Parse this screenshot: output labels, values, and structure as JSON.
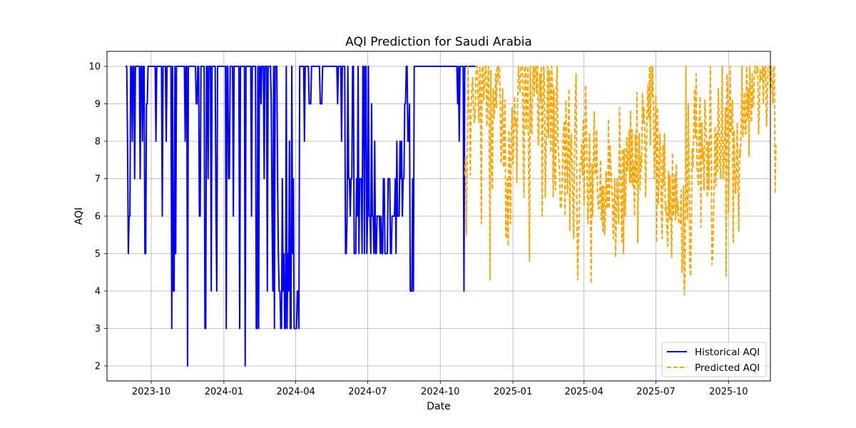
{
  "chart_data": {
    "type": "line",
    "title": "AQI Prediction for Saudi Arabia",
    "xlabel": "Date",
    "ylabel": "AQI",
    "x_is_date": true,
    "xlim": [
      "2023-08-06",
      "2025-11-23"
    ],
    "ylim": [
      1.6,
      10.4
    ],
    "yticks": [
      2,
      3,
      4,
      5,
      6,
      7,
      8,
      9,
      10
    ],
    "xticks": [
      "2023-10-01",
      "2024-01-01",
      "2024-04-01",
      "2024-07-01",
      "2024-10-01",
      "2025-01-01",
      "2025-04-01",
      "2025-07-01",
      "2025-10-01"
    ],
    "xtick_labels": [
      "2023-10",
      "2024-01",
      "2024-04",
      "2024-07",
      "2024-10",
      "2025-01",
      "2025-04",
      "2025-07",
      "2025-10"
    ],
    "grid": true,
    "legend_position": "lower-right",
    "series": [
      {
        "name": "Historical AQI",
        "color": "#0000ff",
        "style": "solid",
        "start_date": "2023-08-30",
        "values": [
          10,
          10,
          8,
          5,
          6,
          6,
          10,
          10,
          8,
          10,
          10,
          7,
          10,
          10,
          10,
          10,
          10,
          10,
          7,
          10,
          10,
          8,
          10,
          10,
          5,
          5,
          9,
          9,
          10,
          10,
          10,
          10,
          10,
          10,
          10,
          10,
          10,
          10,
          8,
          10,
          10,
          10,
          10,
          10,
          10,
          10,
          6,
          10,
          10,
          10,
          10,
          8,
          10,
          10,
          10,
          10,
          10,
          10,
          3,
          10,
          4,
          4,
          10,
          5,
          10,
          10,
          10,
          10,
          10,
          10,
          10,
          10,
          10,
          10,
          10,
          8,
          10,
          10,
          2,
          10,
          10,
          10,
          10,
          10,
          10,
          10,
          10,
          10,
          10,
          9,
          9,
          10,
          10,
          6,
          6,
          10,
          10,
          10,
          10,
          10,
          3,
          3,
          10,
          10,
          7,
          10,
          10,
          10,
          4,
          10,
          10,
          10,
          10,
          10,
          6,
          4,
          10,
          10,
          10,
          10,
          10,
          10,
          10,
          10,
          10,
          10,
          10,
          3,
          10,
          10,
          7,
          7,
          10,
          10,
          10,
          10,
          6,
          10,
          10,
          10,
          10,
          10,
          10,
          10,
          3,
          10,
          10,
          10,
          10,
          10,
          10,
          2,
          10,
          10,
          10,
          10,
          10,
          10,
          10,
          6,
          10,
          10,
          10,
          10,
          10,
          3,
          3,
          10,
          3,
          10,
          10,
          9,
          10,
          10,
          10,
          7,
          10,
          10,
          10,
          4,
          10,
          10,
          10,
          10,
          9,
          6,
          4,
          10,
          3,
          10,
          10,
          10,
          7,
          5,
          4,
          4,
          3,
          3,
          7,
          4,
          5,
          3,
          3,
          10,
          3,
          5,
          4,
          8,
          3,
          3,
          10,
          5,
          7,
          3,
          3,
          3,
          3,
          4,
          4,
          3,
          10,
          10,
          10,
          10,
          10,
          10,
          8,
          10,
          10,
          10,
          10,
          10,
          9,
          9,
          9,
          10,
          10,
          10,
          10,
          10,
          10,
          10,
          10,
          10,
          10,
          10,
          9,
          9,
          9,
          10,
          10,
          10,
          10,
          10,
          10,
          10,
          10,
          10,
          10,
          10,
          10,
          10,
          10,
          10,
          10,
          10,
          10,
          10,
          9,
          10,
          10,
          10,
          10,
          8,
          10,
          10,
          10,
          10,
          5,
          5,
          6,
          10,
          7,
          7,
          6,
          7,
          7,
          10,
          10,
          5,
          5,
          5,
          7,
          6,
          10,
          5,
          7,
          7,
          7,
          5,
          10,
          10,
          5,
          10,
          10,
          5,
          6,
          10,
          6,
          6,
          5,
          9,
          6,
          6,
          5,
          8,
          5,
          5,
          6,
          6,
          6,
          6,
          5,
          6,
          5,
          5,
          7,
          7,
          5,
          5,
          5,
          5,
          7,
          7,
          7,
          5,
          5,
          6,
          6,
          6,
          6,
          7,
          5,
          8,
          6,
          6,
          6,
          8,
          7,
          8,
          6,
          7,
          7,
          9,
          9,
          10,
          10,
          8,
          8,
          9,
          4,
          4,
          4,
          7,
          4,
          10,
          10,
          10,
          10,
          10,
          10,
          10,
          10,
          10,
          10,
          10,
          10,
          10,
          10,
          10,
          10,
          10,
          10,
          10,
          10,
          10,
          10,
          10,
          10,
          10,
          10,
          10,
          10,
          10,
          10,
          10,
          10,
          10,
          10,
          10,
          10,
          10,
          10,
          10,
          10,
          10,
          10,
          10,
          10,
          10,
          10,
          10,
          10,
          10,
          10,
          10,
          10,
          10,
          10,
          10,
          9,
          10,
          8,
          10,
          10,
          10,
          10,
          10,
          4,
          10,
          10,
          10,
          10,
          10,
          10,
          10,
          10,
          10,
          10,
          10,
          10,
          10,
          10
        ]
      },
      {
        "name": "Predicted AQI",
        "color": "#ffa500",
        "style": "dashed",
        "start_date": "2024-11-01",
        "values": [
          7.1,
          7.6,
          5.5,
          7.3,
          10,
          9.1,
          8.6,
          7.1,
          8.9,
          9.4,
          9.7,
          9.0,
          8.5,
          8.6,
          9.7,
          10,
          10,
          9.0,
          8.5,
          10,
          9.2,
          5.8,
          9.9,
          10,
          9.1,
          9.6,
          10,
          10,
          8.4,
          9.3,
          10,
          8.3,
          4.3,
          9.9,
          7.2,
          6.7,
          9.4,
          8.6,
          8.9,
          9.8,
          8.9,
          10,
          9.6,
          10,
          10,
          9.0,
          7.4,
          8.4,
          9.4,
          7.3,
          7.4,
          9.1,
          5.5,
          5.4,
          7.0,
          5.2,
          8.3,
          7.6,
          5.8,
          8.2,
          8.9,
          7.4,
          7.9,
          9.2,
          8.4,
          8.6,
          6.9,
          9.1,
          10,
          9.7,
          9.3,
          10,
          10,
          10,
          7.7,
          6.5,
          10,
          10,
          8.3,
          9.3,
          10,
          6.8,
          4.8,
          10,
          8.2,
          8.2,
          9.6,
          10,
          9.2,
          10,
          10,
          9.3,
          10,
          7.9,
          8.2,
          9.8,
          9.1,
          10,
          6.0,
          8.9,
          10,
          9.5,
          6.5,
          7.8,
          8.3,
          10,
          8.1,
          9.9,
          9.6,
          7.7,
          10,
          9.6,
          6.5,
          9.4,
          7.0,
          6.7,
          9.5,
          10,
          8.0,
          7.6,
          7.2,
          6.3,
          6.2,
          6.6,
          7.6,
          8.3,
          8.5,
          6.0,
          9.1,
          7.7,
          6.6,
          8.3,
          9.4,
          5.6,
          7.8,
          8.2,
          7.3,
          6.2,
          5.4,
          7.6,
          9.1,
          9.8,
          6.2,
          4.3,
          5.3,
          6.0,
          7.4,
          7.4,
          7.9,
          7.1,
          8.6,
          6.3,
          7.4,
          9.5,
          8.5,
          7.2,
          5.8,
          6.5,
          8.2,
          6.8,
          4.2,
          7.4,
          6.0,
          7.6,
          8.8,
          7.2,
          7.1,
          8.3,
          6.6,
          6.2,
          6.2,
          6.6,
          7.5,
          5.9,
          6.8,
          5.6,
          6.8,
          5.5,
          5.9,
          7.2,
          6.3,
          6.2,
          8.6,
          6.2,
          7.9,
          7.3,
          6.8,
          6.5,
          5.4,
          6.0,
          7.0,
          4.9,
          6.0,
          7.0,
          6.3,
          5.8,
          8.9,
          7.4,
          6.5,
          5.3,
          7.8,
          5.0,
          7.8,
          6.0,
          6.7,
          8.1,
          7.2,
          7.6,
          8.3,
          6.9,
          8.8,
          6.9,
          8.3,
          6.8,
          7.4,
          6.0,
          8.2,
          6.9,
          9.3,
          5.3,
          7.1,
          8.2,
          6.7,
          7.6,
          7.3,
          9.3,
          8.5,
          8.9,
          8.2,
          6.5,
          7.8,
          8.8,
          9.5,
          8.6,
          10,
          7.9,
          10,
          9.2,
          10,
          8.8,
          7.0,
          8.1,
          9.2,
          5.3,
          8.9,
          6.3,
          6.9,
          8.2,
          7.7,
          6.1,
          5.4,
          7.9,
          6.8,
          8.2,
          6.1,
          6.3,
          5.7,
          5.2,
          7.2,
          5.9,
          7.1,
          6.1,
          4.9,
          7.7,
          6.0,
          6.5,
          7.1,
          5.9,
          7.4,
          6.1,
          6.4,
          5.8,
          5.8,
          5.8,
          6.7,
          4.5,
          4.8,
          6.8,
          3.9,
          4.5,
          10,
          6.4,
          5.9,
          9.0,
          7.5,
          4.7,
          4.4,
          6.0,
          7.8,
          7.3,
          8.4,
          9.4,
          8.1,
          9.8,
          7.3,
          7.1,
          6.8,
          8.6,
          9.2,
          5.7,
          8.5,
          7.5,
          7.8,
          6.7,
          9.1,
          8.6,
          8.0,
          6.5,
          8.0,
          6.7,
          7.9,
          10,
          8.0,
          4.7,
          4.9,
          6.0,
          7.2,
          8.4,
          6.8,
          8.2,
          7.2,
          9.4,
          8.5,
          7.4,
          7.0,
          8.4,
          10,
          7.0,
          7.3,
          8.0,
          8.9,
          4.4,
          9.8,
          9.3,
          6.1,
          7.8,
          10,
          8.2,
          8.7,
          9.1,
          5.3,
          8.3,
          7.2,
          6.6,
          7.2,
          8.5,
          6.8,
          5.6,
          7.8,
          7.6,
          8.4,
          10,
          8.1,
          8.5,
          9.3,
          8.2,
          8.2,
          10,
          8.6,
          9.4,
          7.6,
          10,
          9.1,
          8.5,
          9.8,
          8.9,
          9.2,
          10,
          10,
          9.8,
          9.9,
          10,
          8.2,
          8.8,
          9.9,
          9.6,
          9.8,
          10,
          9.0,
          10,
          9.7,
          10,
          8.4,
          8.9,
          10,
          10,
          10,
          9.4,
          10,
          9.5,
          9.0,
          10,
          10,
          6.6,
          7.9
        ]
      }
    ]
  }
}
